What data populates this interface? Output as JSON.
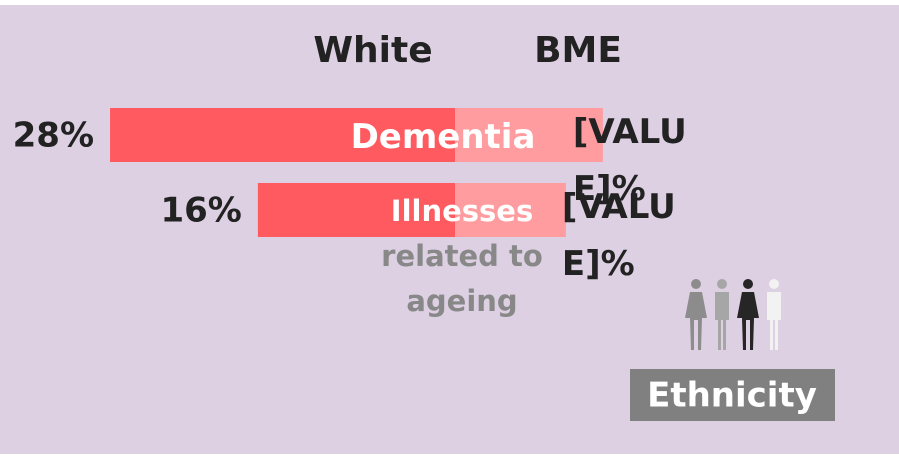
{
  "chart_data": {
    "type": "butterfly-bar",
    "categories": [
      "Dementia",
      "Illnesses related to ageing"
    ],
    "series": [
      {
        "name": "White",
        "color": "#ff5a5f",
        "values": [
          28,
          16
        ],
        "value_labels": [
          "28%",
          "16%"
        ]
      },
      {
        "name": "BME",
        "color": "#ff9ca0",
        "values": [
          12,
          9
        ],
        "value_labels": [
          "[VALUE]%",
          "[VALUE]%"
        ]
      }
    ],
    "annotations": [
      "Ethnicity"
    ]
  }
}
